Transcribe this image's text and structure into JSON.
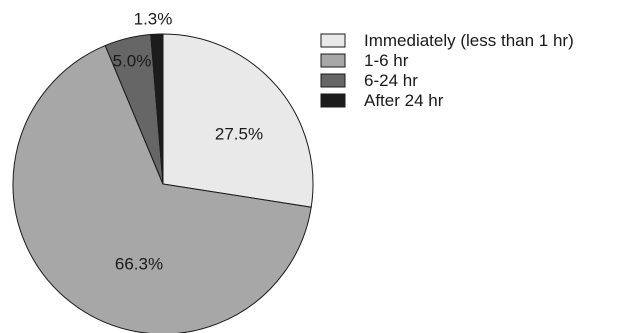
{
  "chart_data": {
    "type": "pie",
    "title": "",
    "categories": [
      "Immediately (less than 1 hr)",
      "1-6 hr",
      "6-24 hr",
      "After 24 hr"
    ],
    "values": [
      27.5,
      66.3,
      5.0,
      1.3
    ],
    "value_labels": [
      "27.5%",
      "66.3%",
      "5.0%",
      "1.3%"
    ],
    "colors": [
      "#e9e9e9",
      "#a7a7a7",
      "#666666",
      "#1c1c1c"
    ],
    "start_angle_deg": 0,
    "direction": "clockwise",
    "legend_position": "top-right"
  }
}
